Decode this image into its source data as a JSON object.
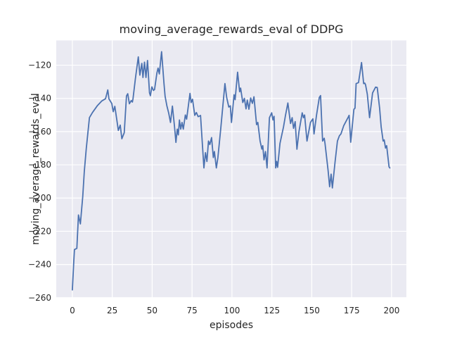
{
  "chart_data": {
    "type": "line",
    "title": "moving_average_rewards_eval of DDPG",
    "xlabel": "episodes",
    "ylabel": "moving_average_rewards_eval",
    "xlim": [
      -10.1,
      209.3
    ],
    "ylim": [
      -260.1,
      -105.1
    ],
    "xticks": [
      0,
      25,
      50,
      75,
      100,
      125,
      150,
      175,
      200
    ],
    "yticks": [
      -260,
      -240,
      -220,
      -200,
      -180,
      -160,
      -140,
      -120
    ],
    "grid": true,
    "legend_position": "none",
    "style": {
      "line_color": "#4C72B0",
      "line_width": 1.8,
      "plot_bg": "#EAEAF2",
      "grid_color": "#FFFFFF",
      "text_color": "#262626",
      "fig_bg": "#FFFFFF"
    },
    "series": [
      {
        "name": "moving_average_rewards_eval",
        "points": [
          [
            0,
            -255.3
          ],
          [
            0.9,
            -237.7
          ],
          [
            1.3,
            -231
          ],
          [
            2.8,
            -230.3
          ],
          [
            3.8,
            -210.2
          ],
          [
            5,
            -215.6
          ],
          [
            6.5,
            -199
          ],
          [
            7.5,
            -184
          ],
          [
            8.7,
            -170.2
          ],
          [
            10.7,
            -151.6
          ],
          [
            12.6,
            -148.5
          ],
          [
            15.6,
            -144.5
          ],
          [
            18.5,
            -141.5
          ],
          [
            20.8,
            -140.2
          ],
          [
            22.2,
            -134.9
          ],
          [
            22.9,
            -140.3
          ],
          [
            24.7,
            -143.1
          ],
          [
            25.6,
            -148
          ],
          [
            26.6,
            -144.8
          ],
          [
            27.8,
            -152.5
          ],
          [
            28.8,
            -159.3
          ],
          [
            30,
            -156.1
          ],
          [
            31,
            -164.3
          ],
          [
            32.5,
            -160.7
          ],
          [
            33.9,
            -138.5
          ],
          [
            34.7,
            -137.2
          ],
          [
            35.7,
            -143.2
          ],
          [
            36.9,
            -141.3
          ],
          [
            37.6,
            -142.2
          ],
          [
            38,
            -140.1
          ],
          [
            39.5,
            -128
          ],
          [
            41.3,
            -115
          ],
          [
            42.3,
            -126
          ],
          [
            43.5,
            -118.9
          ],
          [
            44.2,
            -127.4
          ],
          [
            45.2,
            -118.2
          ],
          [
            46.1,
            -127.4
          ],
          [
            47.1,
            -117.2
          ],
          [
            48.3,
            -136.6
          ],
          [
            48.9,
            -138.4
          ],
          [
            49.8,
            -133.1
          ],
          [
            50.8,
            -135.2
          ],
          [
            51.5,
            -134.7
          ],
          [
            53,
            -124.6
          ],
          [
            53.7,
            -121.8
          ],
          [
            54.5,
            -125.3
          ],
          [
            55.9,
            -111.9
          ],
          [
            57.4,
            -130.9
          ],
          [
            58.1,
            -138.7
          ],
          [
            59.2,
            -144.4
          ],
          [
            60.4,
            -149
          ],
          [
            61.5,
            -154.5
          ],
          [
            62.7,
            -144.6
          ],
          [
            64,
            -157
          ],
          [
            64.9,
            -166.5
          ],
          [
            65.7,
            -158.5
          ],
          [
            66.4,
            -162
          ],
          [
            67.1,
            -153
          ],
          [
            67.9,
            -158.5
          ],
          [
            68.7,
            -154.5
          ],
          [
            69.5,
            -158.5
          ],
          [
            70.8,
            -150
          ],
          [
            71.6,
            -152.5
          ],
          [
            73.7,
            -137
          ],
          [
            74.4,
            -142.5
          ],
          [
            75.3,
            -140.5
          ],
          [
            76.7,
            -150.2
          ],
          [
            77.7,
            -148.5
          ],
          [
            78.8,
            -151
          ],
          [
            80.3,
            -150.3
          ],
          [
            82.4,
            -181.9
          ],
          [
            83.4,
            -172.7
          ],
          [
            84.3,
            -178
          ],
          [
            85.3,
            -165.7
          ],
          [
            86.1,
            -167.8
          ],
          [
            87.2,
            -163.6
          ],
          [
            88.3,
            -175.6
          ],
          [
            89,
            -172
          ],
          [
            90.2,
            -181.9
          ],
          [
            91.2,
            -175.6
          ],
          [
            93,
            -158
          ],
          [
            95.6,
            -131.1
          ],
          [
            96.7,
            -139.5
          ],
          [
            98,
            -145.2
          ],
          [
            99,
            -144.5
          ],
          [
            99.7,
            -154.5
          ],
          [
            101.3,
            -137.8
          ],
          [
            102,
            -140.8
          ],
          [
            103.5,
            -124.2
          ],
          [
            104.8,
            -136
          ],
          [
            105.4,
            -133.8
          ],
          [
            106.8,
            -142.5
          ],
          [
            107.8,
            -140
          ],
          [
            108.8,
            -146.3
          ],
          [
            109.6,
            -141
          ],
          [
            110.6,
            -146.5
          ],
          [
            111.7,
            -139.8
          ],
          [
            112.8,
            -143
          ],
          [
            113.8,
            -139
          ],
          [
            115.4,
            -155.8
          ],
          [
            116.2,
            -154.5
          ],
          [
            117.6,
            -165.7
          ],
          [
            118.7,
            -170.5
          ],
          [
            119.3,
            -168.5
          ],
          [
            120.1,
            -177
          ],
          [
            121,
            -172
          ],
          [
            122,
            -181.9
          ],
          [
            123.5,
            -151.6
          ],
          [
            124.9,
            -148.7
          ],
          [
            125.7,
            -153
          ],
          [
            126.4,
            -150.8
          ],
          [
            127.4,
            -181.9
          ],
          [
            128,
            -178
          ],
          [
            128.6,
            -181.5
          ],
          [
            130.1,
            -167.1
          ],
          [
            132.3,
            -157.2
          ],
          [
            133.5,
            -150.5
          ],
          [
            135,
            -142.8
          ],
          [
            136.7,
            -155.1
          ],
          [
            137.7,
            -151.6
          ],
          [
            138.6,
            -158
          ],
          [
            139.6,
            -154
          ],
          [
            140.7,
            -170.6
          ],
          [
            142,
            -160
          ],
          [
            144,
            -148.7
          ],
          [
            144.8,
            -151.6
          ],
          [
            145.5,
            -150
          ],
          [
            147,
            -165.7
          ],
          [
            149.2,
            -154.4
          ],
          [
            150.7,
            -152.3
          ],
          [
            151.4,
            -161.4
          ],
          [
            153,
            -150
          ],
          [
            154.7,
            -139.5
          ],
          [
            155.5,
            -138.3
          ],
          [
            156.8,
            -165.7
          ],
          [
            157.8,
            -164
          ],
          [
            158.3,
            -167
          ],
          [
            160.2,
            -183.3
          ],
          [
            161.2,
            -193.2
          ],
          [
            162.1,
            -185.6
          ],
          [
            162.9,
            -193.9
          ],
          [
            164.6,
            -178.4
          ],
          [
            166.1,
            -165.7
          ],
          [
            167.3,
            -162.5
          ],
          [
            168.3,
            -161.4
          ],
          [
            170,
            -156.5
          ],
          [
            172.7,
            -151.6
          ],
          [
            173.4,
            -150.2
          ],
          [
            174.4,
            -166.4
          ],
          [
            176.4,
            -146.6
          ],
          [
            177.1,
            -145.9
          ],
          [
            177.8,
            -131.1
          ],
          [
            179.3,
            -130.5
          ],
          [
            181.2,
            -118.4
          ],
          [
            182.5,
            -131.1
          ],
          [
            183.2,
            -130.8
          ],
          [
            183.7,
            -131.8
          ],
          [
            184.8,
            -137.5
          ],
          [
            186.2,
            -151.6
          ],
          [
            188.1,
            -136.7
          ],
          [
            190,
            -133.2
          ],
          [
            191,
            -133.4
          ],
          [
            192.5,
            -145.9
          ],
          [
            193.5,
            -157.2
          ],
          [
            194.7,
            -165.7
          ],
          [
            195.4,
            -165
          ],
          [
            196.2,
            -169.9
          ],
          [
            196.9,
            -168.5
          ],
          [
            198.4,
            -181.2
          ],
          [
            198.9,
            -181.9
          ]
        ]
      }
    ]
  }
}
